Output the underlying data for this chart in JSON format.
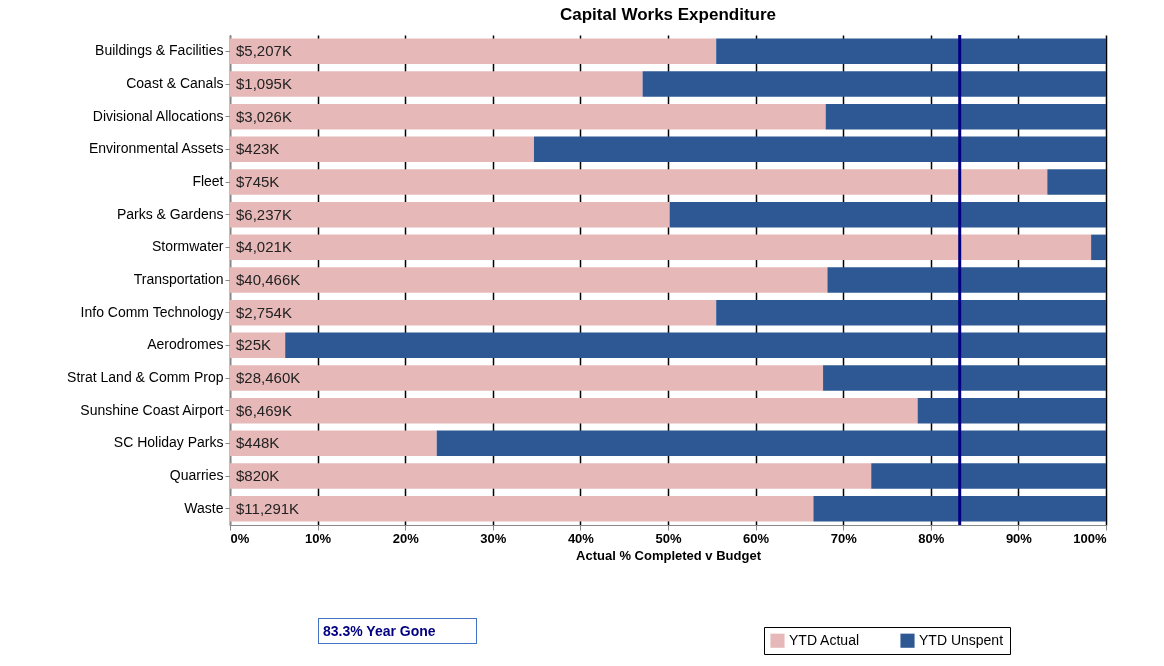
{
  "chart_data": {
    "type": "bar",
    "orientation": "horizontal",
    "stacked": true,
    "title": "Capital Works Expenditure",
    "xlabel": "Actual % Completed v Budget",
    "categories": [
      "Buildings & Facilities",
      "Coast & Canals",
      "Divisional Allocations",
      "Environmental Assets",
      "Fleet",
      "Parks & Gardens",
      "Stormwater",
      "Transportation",
      "Info Comm Technology",
      "Aerodromes",
      "Strat Land & Comm Prop",
      "Sunshine Coast Airport",
      "SC Holiday Parks",
      "Quarries",
      "Waste"
    ],
    "series": [
      {
        "name": "YTD Actual",
        "color": "#e6b9b8",
        "values": [
          55.5,
          47.1,
          68.0,
          34.7,
          93.3,
          50.2,
          98.3,
          68.2,
          55.5,
          6.3,
          67.7,
          78.5,
          23.6,
          73.2,
          66.6
        ]
      },
      {
        "name": "YTD Unspent",
        "color": "#2e5894",
        "values": [
          44.5,
          52.9,
          32.0,
          65.3,
          6.7,
          49.8,
          1.7,
          31.8,
          44.5,
          93.7,
          32.3,
          21.5,
          76.4,
          26.8,
          33.4
        ]
      }
    ],
    "xlim": [
      0,
      100
    ],
    "xticks": [
      {
        "value": 0,
        "label": "0%"
      },
      {
        "value": 10,
        "label": "10%"
      },
      {
        "value": 20,
        "label": "20%"
      },
      {
        "value": 30,
        "label": "30%"
      },
      {
        "value": 40,
        "label": "40%"
      },
      {
        "value": 50,
        "label": "50%"
      },
      {
        "value": 60,
        "label": "60%"
      },
      {
        "value": 70,
        "label": "70%"
      },
      {
        "value": 80,
        "label": "80%"
      },
      {
        "value": 90,
        "label": "90%"
      },
      {
        "value": 100,
        "label": "100%"
      }
    ],
    "ref_lines": [
      {
        "axis": "x",
        "value": 83.3,
        "label": "83.3% Year Gone",
        "color": "#000080"
      }
    ],
    "annotations": [
      {
        "text": "$5,207K",
        "y": "Buildings & Facilities"
      },
      {
        "text": "$1,095K",
        "y": "Coast & Canals"
      },
      {
        "text": "$3,026K",
        "y": "Divisional Allocations"
      },
      {
        "text": "$423K",
        "y": "Environmental Assets"
      },
      {
        "text": "$745K",
        "y": "Fleet"
      },
      {
        "text": "$6,237K",
        "y": "Parks & Gardens"
      },
      {
        "text": "$4,021K",
        "y": "Stormwater"
      },
      {
        "text": "$40,466K",
        "y": "Transportation"
      },
      {
        "text": "$2,754K",
        "y": "Info Comm Technology"
      },
      {
        "text": "$25K",
        "y": "Aerodromes"
      },
      {
        "text": "$28,460K",
        "y": "Strat Land & Comm Prop"
      },
      {
        "text": "$6,469K",
        "y": "Sunshine Coast Airport"
      },
      {
        "text": "$448K",
        "y": "SC Holiday Parks"
      },
      {
        "text": "$820K",
        "y": "Quarries"
      },
      {
        "text": "$11,291K",
        "y": "Waste"
      }
    ],
    "grid": "x",
    "legend": "bottom right"
  }
}
